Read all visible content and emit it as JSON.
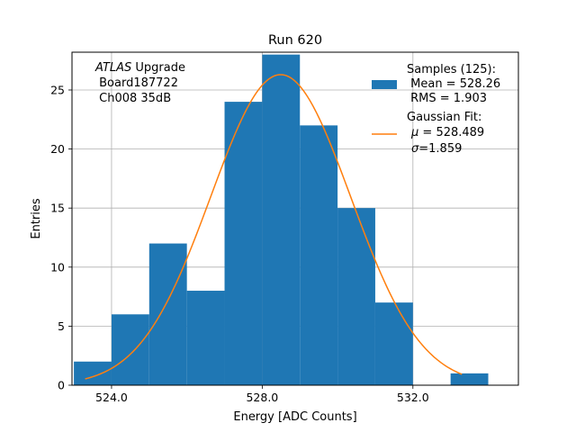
{
  "chart_data": {
    "type": "histogram",
    "title": "Run 620",
    "xlabel": "Energy [ADC Counts]",
    "ylabel": "Entries",
    "xlim": [
      522.95,
      534.8
    ],
    "ylim": [
      0,
      28.2
    ],
    "grid": true,
    "xticks": [
      524.0,
      528.0,
      532.0
    ],
    "xtick_labels": [
      "524.0",
      "528.0",
      "532.0"
    ],
    "yticks": [
      0,
      5,
      10,
      15,
      20,
      25
    ],
    "yticks_labels": [
      "0",
      "5",
      "10",
      "15",
      "20",
      "25"
    ],
    "bins": [
      {
        "x0": 523.0,
        "x1": 524.0,
        "count": 2
      },
      {
        "x0": 524.0,
        "x1": 525.0,
        "count": 6
      },
      {
        "x0": 525.0,
        "x1": 526.0,
        "count": 12
      },
      {
        "x0": 526.0,
        "x1": 527.0,
        "count": 8
      },
      {
        "x0": 527.0,
        "x1": 528.0,
        "count": 24
      },
      {
        "x0": 528.0,
        "x1": 529.0,
        "count": 28
      },
      {
        "x0": 529.0,
        "x1": 530.0,
        "count": 22
      },
      {
        "x0": 530.0,
        "x1": 531.0,
        "count": 15
      },
      {
        "x0": 531.0,
        "x1": 532.0,
        "count": 7
      },
      {
        "x0": 532.0,
        "x1": 533.0,
        "count": 0
      },
      {
        "x0": 533.0,
        "x1": 534.0,
        "count": 1
      }
    ],
    "bar_color": "#1f77b4",
    "fit": {
      "type": "gaussian",
      "mu": 528.489,
      "sigma": 1.859,
      "amplitude": 26.3,
      "x_range": [
        523.3,
        533.3
      ],
      "color": "#ff7f0e"
    },
    "annotation": {
      "line1_italic": "ATLAS",
      "line1_rest": " Upgrade",
      "line2": " Board187722",
      "line3": " Ch008 35dB"
    },
    "legend": {
      "position": "top-right",
      "samples_line1": "Samples (125):",
      "samples_line2": " Mean = 528.26",
      "samples_line3": " RMS = 1.903",
      "fit_line1": "Gaussian Fit:",
      "fit_mu_symbol": "μ",
      "fit_mu_text": " = 528.489",
      "fit_sigma_symbol": "σ",
      "fit_sigma_text": "=1.859"
    }
  }
}
